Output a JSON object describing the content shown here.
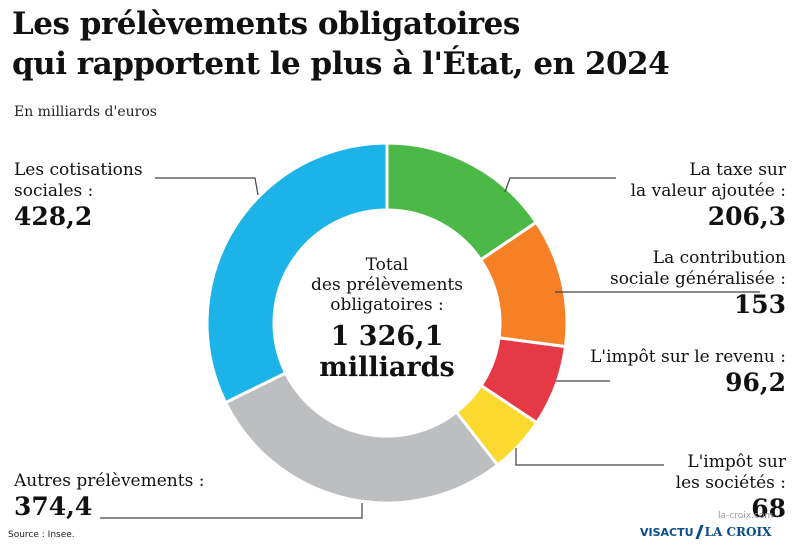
{
  "title_line1": "Les prélèvements obligatoires",
  "title_line2": "qui  rapportent le plus à l'État, en 2024",
  "subtitle": "En milliards d'euros",
  "center_text": "Total\ndes prélèvements\nobligatoires :",
  "center_value": "1 326,1\nmilliards",
  "source": "Source : Insee.",
  "logo_visactu": "VISACTU",
  "logo_lacroix": "LA CROIX",
  "watermark": "la-croix.com",
  "labels": {
    "cotisations": "Les cotisations\nsociales :",
    "cotisations_value": "428,2",
    "tva": "La taxe sur\nla valeur ajoutée :",
    "tva_value": "206,3",
    "csg": "La contribution\nsociale généralisée :",
    "csg_value": "153",
    "ir": "L'impôt sur le revenu :",
    "ir_value": "96,2",
    "is": "L'impôt sur\nles sociétés :",
    "is_value": "68",
    "autres": "Autres prélèvements :",
    "autres_value": "374,4"
  },
  "colors": {
    "cotisations": "#1cb3e8",
    "tva": "#4cb848",
    "csg": "#f58025",
    "ir": "#e63946",
    "is": "#fbd92f",
    "autres": "#bcbec0"
  },
  "chart_data": {
    "type": "pie",
    "title": "Les prélèvements obligatoires qui  rapportent le plus à l'État, en 2024",
    "unit": "En milliards d'euros",
    "total": 1326.1,
    "categories": [
      "La taxe sur la valeur ajoutée",
      "La contribution sociale généralisée",
      "L'impôt sur le revenu",
      "L'impôt sur les sociétés",
      "Autres prélèvements",
      "Les cotisations sociales"
    ],
    "values": [
      206.3,
      153,
      96.2,
      68,
      374.4,
      428.2
    ],
    "donut": true
  }
}
